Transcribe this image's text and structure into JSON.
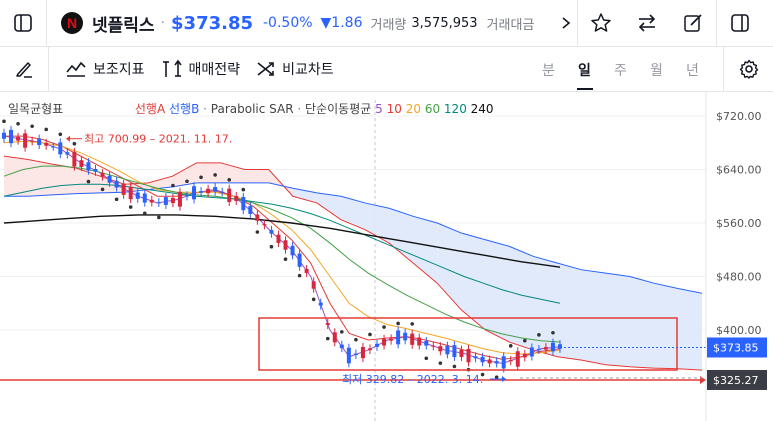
{
  "header": {
    "ticker_name": "넷플릭스",
    "separator": "·",
    "price": "$373.85",
    "change_pct": "-0.50%",
    "change_abs": "▼1.86",
    "volume_label": "거래량",
    "volume_value": "3,575,953",
    "amount_label": "거래대금",
    "logo_letter": "N"
  },
  "toolbar": {
    "indicators_label": "보조지표",
    "strategy_label": "매매전략",
    "compare_label": "비교차트",
    "periods": [
      "분",
      "일",
      "주",
      "월",
      "년"
    ],
    "active_period": "일"
  },
  "icons": {
    "left_panel": "sidebar-toggle-icon",
    "star": "star-icon",
    "compare": "swap-arrows-icon",
    "edit": "pencil-square-icon",
    "right_panel": "right-panel-icon",
    "draw": "pen-icon",
    "settings": "gear-icon",
    "more": "chevron-right-icon"
  },
  "legend": {
    "ichimoku": "일목균형표",
    "span_a": "선행A",
    "span_b": "선행B",
    "sar": "Parabolic SAR",
    "sep": "·",
    "ma_label": "단순이동평균",
    "ma_periods": [
      "5",
      "10",
      "20",
      "60",
      "120",
      "240"
    ]
  },
  "annotations": {
    "high": "최고 700.99 – 2021. 11. 17.",
    "low": "최저 329.82 – 2022. 3. 14."
  },
  "colors": {
    "accent": "#2962ff",
    "up": "#d7263d",
    "down": "#2962ff",
    "ma5": "#9c4dcc",
    "ma10": "#e53935",
    "ma20": "#f5a623",
    "ma60": "#43a047",
    "ma120": "#00897b",
    "ma240": "#111111",
    "cloud_up": "#fde3e3",
    "cloud_down": "#dde8fb"
  },
  "chart_data": {
    "type": "candlestick",
    "y_ticks": [
      "$720.00",
      "$640.00",
      "$560.00",
      "$480.00",
      "$400.00"
    ],
    "ylim": [
      320,
      740
    ],
    "current_price_label": "$373.85",
    "marker_price_label": "$325.27",
    "current_price": 373.85,
    "marker_price": 325.27,
    "ma_series": {
      "ma5": [
        690,
        685,
        680,
        670,
        650,
        635,
        615,
        600,
        590,
        595,
        605,
        610,
        600,
        575,
        545,
        520,
        480,
        400,
        360,
        370,
        385,
        390,
        380,
        370,
        365,
        355,
        350,
        360,
        372,
        375
      ],
      "ma10": [
        690,
        690,
        685,
        675,
        660,
        645,
        630,
        615,
        600,
        600,
        605,
        608,
        600,
        585,
        560,
        535,
        500,
        440,
        395,
        385,
        388,
        390,
        385,
        378,
        370,
        362,
        356,
        360,
        368,
        372
      ],
      "ma20": [
        680,
        682,
        680,
        675,
        665,
        652,
        638,
        622,
        610,
        606,
        606,
        606,
        600,
        590,
        572,
        550,
        520,
        480,
        440,
        420,
        408,
        402,
        395,
        388,
        380,
        372,
        366,
        364,
        366,
        370
      ],
      "ma60": [
        630,
        640,
        645,
        645,
        642,
        636,
        628,
        620,
        612,
        606,
        602,
        600,
        596,
        590,
        580,
        568,
        552,
        530,
        506,
        485,
        468,
        452,
        438,
        424,
        412,
        402,
        394,
        388,
        384,
        382
      ],
      "ma120": [
        600,
        606,
        612,
        616,
        618,
        618,
        616,
        612,
        608,
        604,
        600,
        598,
        596,
        592,
        588,
        582,
        574,
        564,
        552,
        540,
        528,
        516,
        504,
        492,
        480,
        470,
        460,
        452,
        446,
        440
      ],
      "ma240": [
        560,
        562,
        564,
        566,
        568,
        570,
        571,
        572,
        572,
        572,
        571,
        570,
        568,
        566,
        563,
        560,
        556,
        552,
        547,
        542,
        537,
        532,
        527,
        522,
        517,
        512,
        507,
        502,
        498,
        494
      ]
    },
    "span_a": [
      660,
      655,
      648,
      642,
      630,
      618,
      620,
      630,
      650,
      650,
      640,
      640,
      600,
      590,
      565,
      550,
      530,
      500,
      470,
      430,
      400,
      382,
      370,
      360,
      355,
      348,
      345,
      343,
      342,
      340
    ],
    "span_b": [
      600,
      600,
      602,
      604,
      605,
      606,
      610,
      614,
      620,
      620,
      620,
      620,
      612,
      605,
      600,
      590,
      582,
      570,
      560,
      545,
      535,
      525,
      510,
      500,
      490,
      485,
      480,
      470,
      462,
      455
    ]
  }
}
